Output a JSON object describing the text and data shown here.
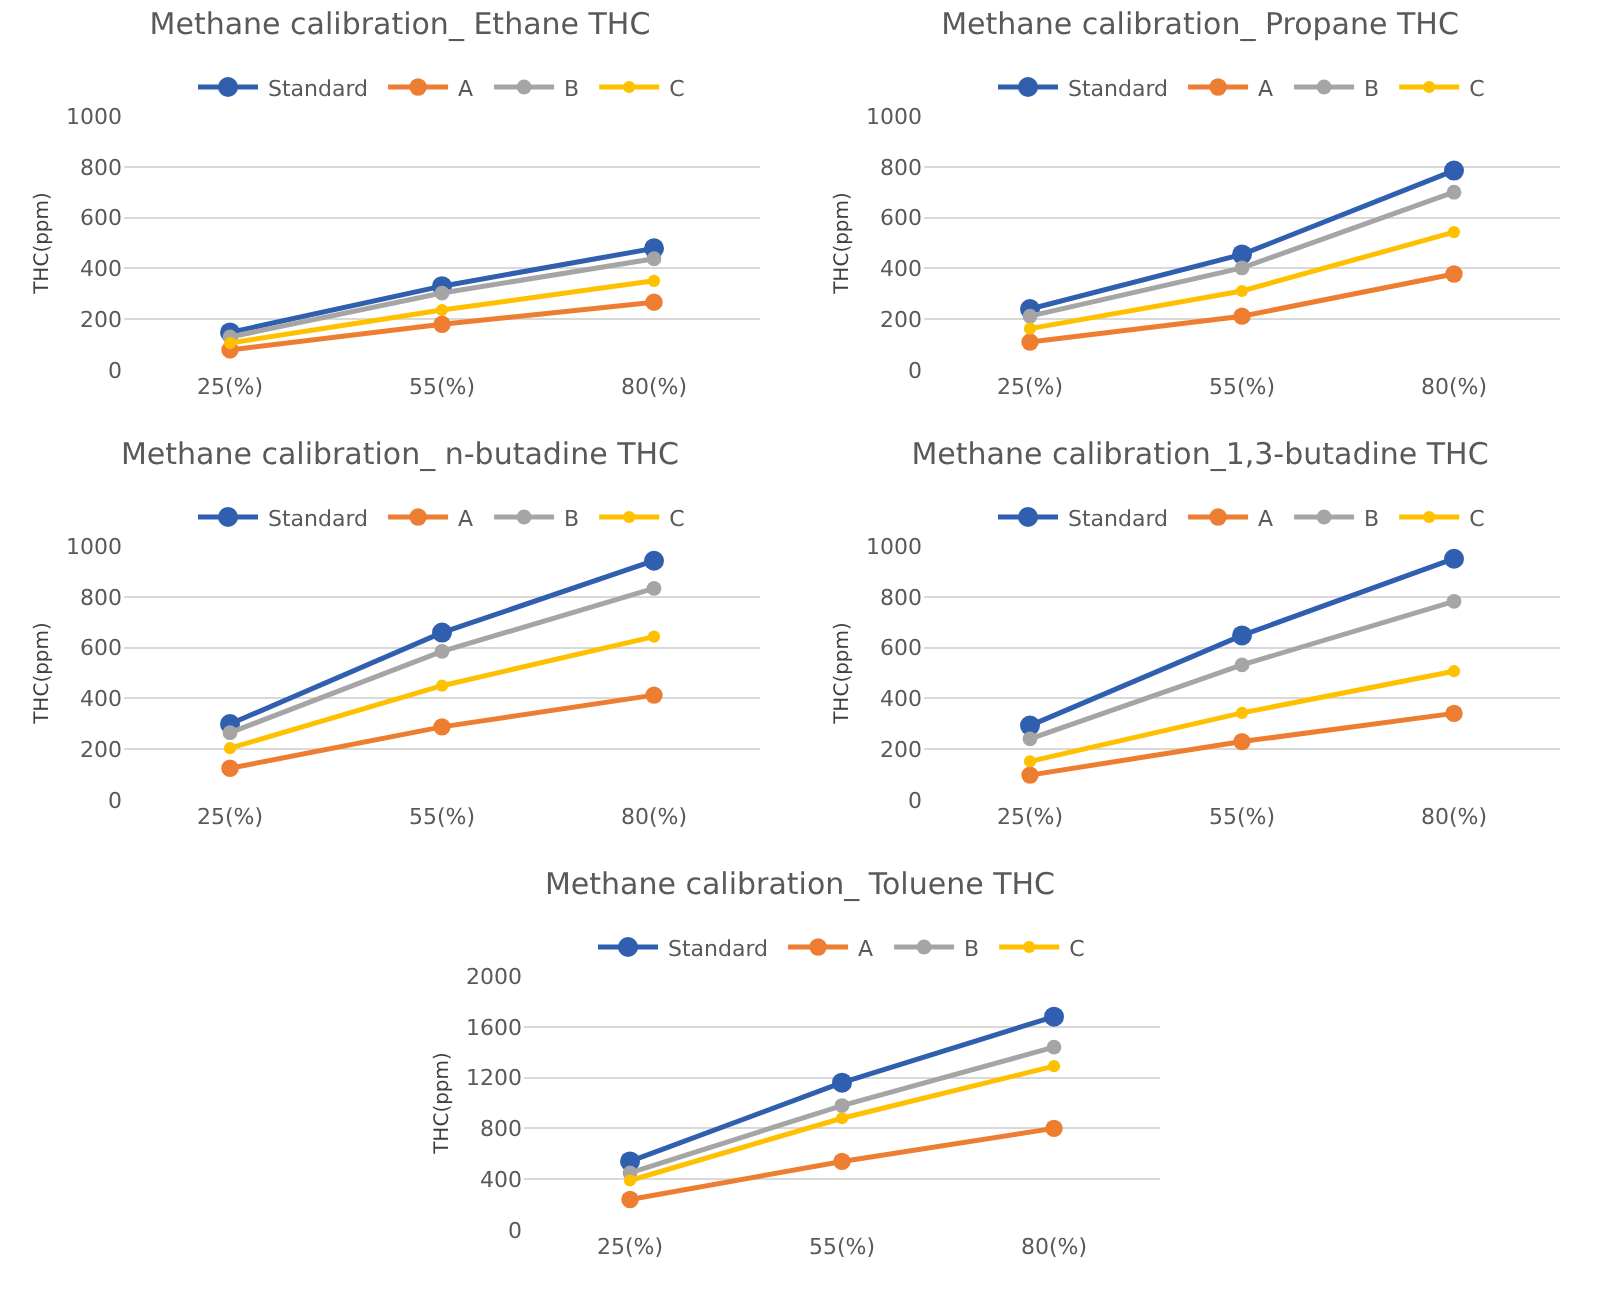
{
  "chart_data": [
    {
      "type": "line",
      "title": "Methane calibration_ Ethane THC",
      "ylabel": "THC(ppm)",
      "categories": [
        "25(%)",
        "55(%)",
        "80(%)"
      ],
      "ylim": [
        0,
        1000
      ],
      "yticks": [
        0,
        200,
        400,
        600,
        800,
        1000
      ],
      "grid": "y",
      "legend": "top",
      "marker": "circle",
      "series": [
        {
          "name": "Standard",
          "color": "#2f5fae",
          "values": [
            148,
            330,
            479
          ]
        },
        {
          "name": "A",
          "color": "#ed7d31",
          "values": [
            79,
            180,
            267
          ]
        },
        {
          "name": "B",
          "color": "#a5a5a5",
          "values": [
            130,
            303,
            438
          ]
        },
        {
          "name": "C",
          "color": "#ffc000",
          "values": [
            106,
            236,
            351
          ]
        }
      ]
    },
    {
      "type": "line",
      "title": "Methane calibration_ Propane THC",
      "ylabel": "THC(ppm)",
      "categories": [
        "25(%)",
        "55(%)",
        "80(%)"
      ],
      "ylim": [
        0,
        1000
      ],
      "yticks": [
        0,
        200,
        400,
        600,
        800,
        1000
      ],
      "grid": "y",
      "legend": "top",
      "marker": "circle",
      "series": [
        {
          "name": "Standard",
          "color": "#2f5fae",
          "values": [
            240,
            455,
            785
          ]
        },
        {
          "name": "A",
          "color": "#ed7d31",
          "values": [
            110,
            212,
            378
          ]
        },
        {
          "name": "B",
          "color": "#a5a5a5",
          "values": [
            212,
            402,
            700
          ]
        },
        {
          "name": "C",
          "color": "#ffc000",
          "values": [
            163,
            311,
            543
          ]
        }
      ]
    },
    {
      "type": "line",
      "title": "Methane calibration_ n-butadine THC",
      "ylabel": "THC(ppm)",
      "categories": [
        "25(%)",
        "55(%)",
        "80(%)"
      ],
      "ylim": [
        0,
        1000
      ],
      "yticks": [
        0,
        200,
        400,
        600,
        800,
        1000
      ],
      "grid": "y",
      "legend": "top",
      "marker": "circle",
      "series": [
        {
          "name": "Standard",
          "color": "#2f5fae",
          "values": [
            299,
            659,
            942
          ]
        },
        {
          "name": "A",
          "color": "#ed7d31",
          "values": [
            125,
            288,
            413
          ]
        },
        {
          "name": "B",
          "color": "#a5a5a5",
          "values": [
            265,
            585,
            833
          ]
        },
        {
          "name": "C",
          "color": "#ffc000",
          "values": [
            204,
            450,
            643
          ]
        }
      ]
    },
    {
      "type": "line",
      "title": "Methane calibration_1,3-butadine THC",
      "ylabel": "THC(ppm)",
      "categories": [
        "25(%)",
        "55(%)",
        "80(%)"
      ],
      "ylim": [
        0,
        1000
      ],
      "yticks": [
        0,
        200,
        400,
        600,
        800,
        1000
      ],
      "grid": "y",
      "legend": "top",
      "marker": "circle",
      "series": [
        {
          "name": "Standard",
          "color": "#2f5fae",
          "values": [
            293,
            648,
            950
          ]
        },
        {
          "name": "A",
          "color": "#ed7d31",
          "values": [
            98,
            230,
            341
          ]
        },
        {
          "name": "B",
          "color": "#a5a5a5",
          "values": [
            241,
            532,
            782
          ]
        },
        {
          "name": "C",
          "color": "#ffc000",
          "values": [
            152,
            343,
            507
          ]
        }
      ]
    },
    {
      "type": "line",
      "title": "Methane calibration_ Toluene THC",
      "ylabel": "THC(ppm)",
      "categories": [
        "25(%)",
        "55(%)",
        "80(%)"
      ],
      "ylim": [
        0,
        2000
      ],
      "yticks": [
        0,
        400,
        800,
        1200,
        1600,
        2000
      ],
      "grid": "y",
      "legend": "top",
      "marker": "circle",
      "series": [
        {
          "name": "Standard",
          "color": "#2f5fae",
          "values": [
            540,
            1160,
            1680
          ]
        },
        {
          "name": "A",
          "color": "#ed7d31",
          "values": [
            240,
            540,
            800
          ]
        },
        {
          "name": "B",
          "color": "#a5a5a5",
          "values": [
            450,
            980,
            1440
          ]
        },
        {
          "name": "C",
          "color": "#ffc000",
          "values": [
            390,
            880,
            1290
          ]
        }
      ]
    }
  ]
}
